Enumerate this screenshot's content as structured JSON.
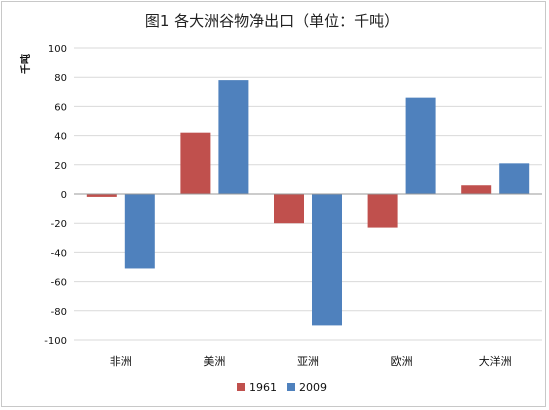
{
  "chart_data": {
    "type": "bar",
    "title": "图1 各大洲谷物净出口（单位：千吨）",
    "xlabel": "",
    "ylabel": "千吨",
    "categories": [
      "非洲",
      "美洲",
      "亚洲",
      "欧洲",
      "大洋洲"
    ],
    "series": [
      {
        "name": "1961",
        "color": "#c0504d",
        "values": [
          -2,
          42,
          -20,
          -23,
          6
        ]
      },
      {
        "name": "2009",
        "color": "#4f81bd",
        "values": [
          -51,
          78,
          -90,
          66,
          21
        ]
      }
    ],
    "ylim": [
      -100,
      100
    ],
    "yticks": [
      100,
      80,
      60,
      40,
      20,
      0,
      -20,
      -40,
      -60,
      -80,
      -100
    ],
    "grid": true,
    "legend": "bottom"
  }
}
